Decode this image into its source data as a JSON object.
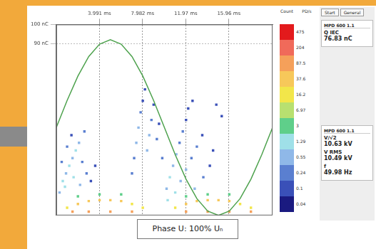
{
  "chart_data": {
    "type": "scatter",
    "xlim": [
      0,
      20
    ],
    "xticks": [
      {
        "value": 3.991,
        "label": "3.991 ms"
      },
      {
        "value": 7.982,
        "label": "7.982 ms"
      },
      {
        "value": 11.97,
        "label": "11.97 ms"
      },
      {
        "value": 15.96,
        "label": "15.96 ms"
      }
    ],
    "ylim": [
      0,
      100
    ],
    "yticks": [
      {
        "value": 90,
        "label": "90 nC"
      },
      {
        "value": 100,
        "label": "100 nC"
      }
    ],
    "grid": true,
    "series": [
      {
        "type": "line",
        "color": "#4ea24e",
        "x": [
          0,
          1,
          2,
          3,
          4,
          5,
          6,
          7,
          8,
          9,
          10,
          11,
          12,
          13,
          14,
          15,
          16,
          17,
          18,
          19,
          20
        ],
        "values": [
          46,
          60.2,
          73.0,
          83.2,
          89.7,
          92,
          89.7,
          83.2,
          73.0,
          60.2,
          46,
          31.8,
          19.0,
          8.8,
          2.3,
          0,
          2.3,
          8.8,
          19.0,
          31.8,
          46
        ]
      },
      {
        "type": "scatter",
        "marker": "square",
        "x": [
          1,
          2,
          3,
          4,
          5,
          6,
          7,
          8,
          11,
          12,
          13,
          14,
          15,
          16,
          17,
          18,
          1.5,
          3,
          5,
          7,
          12,
          14,
          16,
          18,
          2,
          4,
          6,
          12,
          14,
          16,
          0.3,
          0.6,
          0.9,
          1.2,
          1.5,
          1.8,
          2.1,
          2.4,
          0.5,
          1.0,
          2.8,
          3.2,
          3.6,
          2.6,
          1.4,
          0.8,
          1.6,
          2.2,
          7.2,
          7.4,
          7.6,
          7.8,
          8.0,
          8.4,
          8.6,
          8.8,
          9.0,
          9.3,
          9.5,
          8.2,
          7.0,
          9.8,
          10.2,
          10.5,
          10.8,
          11.1,
          11.4,
          11.7,
          12.0,
          11.0,
          11.5,
          12.0,
          12.5,
          13.0,
          13.5,
          12.2,
          12.8,
          13.6,
          14.2,
          14.8,
          15.3,
          14.5,
          10.3,
          12.6
        ],
        "values": [
          4,
          6,
          7.5,
          8,
          8,
          7.5,
          6,
          4,
          4,
          6,
          7.5,
          8,
          8,
          7.5,
          6,
          4,
          2,
          2,
          2,
          2,
          2,
          2,
          2,
          2,
          10,
          11,
          11,
          10,
          11,
          11,
          12,
          18,
          22,
          26,
          30,
          34,
          38,
          28,
          28,
          36,
          22,
          18,
          26,
          44,
          42,
          15,
          20,
          16,
          30,
          38,
          46,
          54,
          60,
          34,
          42,
          50,
          58,
          40,
          48,
          66,
          22,
          30,
          14,
          20,
          26,
          32,
          38,
          44,
          50,
          12,
          18,
          24,
          30,
          36,
          42,
          56,
          14,
          20,
          26,
          58,
          52,
          34,
          8,
          60
        ],
        "count": [
          16.2,
          37.6,
          37.6,
          37.6,
          37.6,
          37.6,
          16.2,
          16.2,
          16.2,
          37.6,
          37.6,
          37.6,
          37.6,
          37.6,
          16.2,
          16.2,
          87.5,
          87.5,
          87.5,
          87.5,
          87.5,
          87.5,
          87.5,
          87.5,
          3,
          3,
          3,
          3,
          3,
          3,
          0.55,
          1.29,
          0.55,
          1.29,
          0.55,
          1.29,
          0.55,
          0.24,
          0.24,
          0.24,
          0.24,
          0.1,
          0.1,
          0.24,
          0.1,
          1.29,
          1.29,
          0.55,
          0.24,
          0.55,
          0.55,
          0.24,
          0.1,
          0.55,
          0.55,
          0.24,
          0.1,
          0.24,
          0.1,
          0.1,
          0.24,
          0.24,
          0.55,
          1.29,
          0.55,
          0.55,
          0.24,
          0.24,
          0.1,
          1.29,
          0.55,
          0.55,
          0.24,
          0.24,
          0.1,
          0.1,
          0.55,
          0.24,
          0.1,
          0.1,
          0.1,
          0.1,
          1.29,
          0.1
        ]
      }
    ],
    "colorbar": {
      "title": "Count",
      "unit_label": "PD/s",
      "ticks": [
        475,
        204,
        87.5,
        37.6,
        16.2,
        6.97,
        3,
        1.29,
        0.55,
        0.24,
        0.1,
        0.04
      ],
      "colors": [
        "#e31a1c",
        "#f06a5a",
        "#f5a05a",
        "#f7c85a",
        "#f2e64a",
        "#b8e070",
        "#5fcf8a",
        "#9fe0e8",
        "#8fb8e8",
        "#5a7fd0",
        "#3a50b8",
        "#1a1a80"
      ]
    }
  },
  "tabs": [
    "Start",
    "General"
  ],
  "side_panel": [
    {
      "header": "MPD 600 1.1",
      "items": [
        {
          "label": "Q IEC",
          "value": "76.83 nC"
        }
      ]
    },
    {
      "header": "MPD 600 1.1",
      "items": [
        {
          "label": "V/√2",
          "value": "10.63 kV"
        },
        {
          "label": "V RMS",
          "value": "10.49 kV"
        },
        {
          "label": "f",
          "value": "49.98 Hz"
        }
      ]
    }
  ],
  "caption": "Phase U: 100% Uₙ"
}
